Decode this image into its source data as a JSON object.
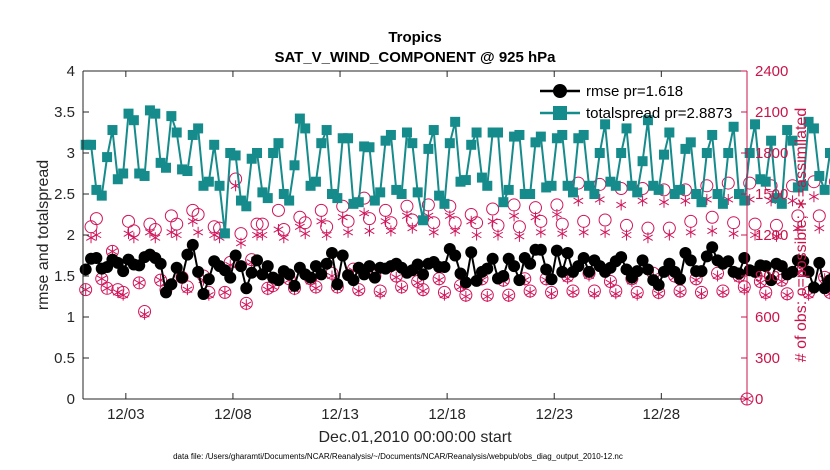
{
  "chart_data": {
    "type": "line",
    "title": "Tropics",
    "subtitle": "SAT_V_WIND_COMPONENT @ 925 hPa",
    "xlabel": "Dec.01,2010 00:00:00 start",
    "ylabel_left": "rmse and totalspread",
    "ylabel_right": "# of obs: o=possible; ∗=assimilated",
    "x_ticks": [
      {
        "day": 3,
        "label": "12/03"
      },
      {
        "day": 8,
        "label": "12/08"
      },
      {
        "day": 13,
        "label": "12/13"
      },
      {
        "day": 18,
        "label": "12/18"
      },
      {
        "day": 23,
        "label": "12/23"
      },
      {
        "day": 28,
        "label": "12/28"
      }
    ],
    "xlim": [
      1,
      32
    ],
    "ylim_left": [
      0,
      4
    ],
    "yticks_left": [
      "0",
      "0.5",
      "1",
      "1.5",
      "2",
      "2.5",
      "3",
      "3.5",
      "4"
    ],
    "ylim_right": [
      0,
      2400
    ],
    "yticks_right": [
      "0",
      "300",
      "600",
      "900",
      "1200",
      "1500",
      "1800",
      "2100",
      "2400"
    ],
    "samples_per_day": 4,
    "series": [
      {
        "name": "rmse",
        "legend": "rmse pr=1.618",
        "color": "#000000",
        "marker": "circle",
        "axis": "left",
        "values": [
          1.58,
          1.71,
          1.72,
          1.59,
          1.61,
          1.7,
          1.66,
          1.56,
          1.7,
          1.64,
          1.63,
          1.73,
          1.76,
          1.72,
          1.65,
          1.3,
          1.4,
          1.6,
          1.48,
          1.76,
          1.88,
          1.55,
          1.28,
          1.46,
          1.68,
          1.62,
          1.57,
          1.48,
          1.75,
          1.62,
          1.35,
          1.54,
          1.69,
          1.52,
          1.62,
          1.48,
          1.45,
          1.56,
          1.52,
          1.38,
          1.6,
          1.52,
          1.48,
          1.62,
          1.52,
          1.65,
          1.78,
          1.4,
          1.75,
          1.51,
          1.45,
          1.6,
          1.52,
          1.62,
          1.48,
          1.6,
          1.59,
          1.62,
          1.65,
          1.6,
          1.54,
          1.57,
          1.64,
          1.52,
          1.65,
          1.67,
          1.61,
          1.61,
          1.83,
          1.75,
          1.53,
          1.42,
          1.79,
          1.44,
          1.55,
          1.59,
          1.71,
          1.47,
          1.5,
          1.71,
          1.62,
          1.45,
          1.72,
          1.65,
          1.82,
          1.82,
          1.58,
          1.46,
          1.81,
          1.55,
          1.78,
          1.55,
          1.62,
          1.72,
          1.55,
          1.69,
          1.62,
          1.55,
          1.6,
          1.68,
          1.73,
          1.58,
          1.48,
          1.56,
          1.69,
          1.58,
          1.45,
          1.39,
          1.55,
          1.65,
          1.55,
          1.46,
          1.78,
          1.69,
          1.56,
          1.56,
          1.74,
          1.85,
          1.69,
          1.65,
          1.68,
          1.55,
          1.53,
          1.72,
          1.57,
          1.55,
          1.63,
          1.62,
          1.45,
          1.65,
          1.62,
          1.52,
          1.55,
          1.69,
          1.68,
          1.55,
          1.36,
          1.66,
          1.35,
          1.45,
          1.52,
          1.64,
          1.7,
          1.55,
          1.74,
          1.65,
          1.42,
          1.5,
          1.55,
          1.88,
          1.72,
          1.52,
          1.42,
          1.65,
          1.4,
          1.49,
          1.66,
          1.6,
          1.44,
          1.38
        ],
        "pr": "1.618"
      },
      {
        "name": "totalspread",
        "legend": "totalspread pr=2.8873",
        "color": "#168b8b",
        "marker": "square",
        "axis": "left",
        "values": [
          3.1,
          3.1,
          2.55,
          2.48,
          2.95,
          3.28,
          2.68,
          2.75,
          3.48,
          3.4,
          2.75,
          2.72,
          3.52,
          3.48,
          2.88,
          2.82,
          3.45,
          3.25,
          2.8,
          2.78,
          3.22,
          3.3,
          2.6,
          2.65,
          3.1,
          2.6,
          2.02,
          3.0,
          2.97,
          2.42,
          2.35,
          2.93,
          3.0,
          2.52,
          2.45,
          3.0,
          3.12,
          2.5,
          2.42,
          2.85,
          3.42,
          3.3,
          2.6,
          2.65,
          3.12,
          3.28,
          2.5,
          2.45,
          3.18,
          3.18,
          2.38,
          2.4,
          3.08,
          3.07,
          2.42,
          2.52,
          3.15,
          3.22,
          2.55,
          2.5,
          3.25,
          3.12,
          2.52,
          2.18,
          3.05,
          3.28,
          2.48,
          2.38,
          3.12,
          3.38,
          2.65,
          2.67,
          3.1,
          3.25,
          2.7,
          2.6,
          3.25,
          3.25,
          2.4,
          2.55,
          3.2,
          3.22,
          2.5,
          2.5,
          3.13,
          3.2,
          2.58,
          2.6,
          3.18,
          3.22,
          2.6,
          2.52,
          3.18,
          3.22,
          2.6,
          2.5,
          3.0,
          3.35,
          2.65,
          2.6,
          3.0,
          3.3,
          2.6,
          2.52,
          2.9,
          3.4,
          2.6,
          2.55,
          2.98,
          3.25,
          2.5,
          2.55,
          3.05,
          3.13,
          2.5,
          2.4,
          3.0,
          3.22,
          2.5,
          2.38,
          3.0,
          3.32,
          2.5,
          2.42,
          3.0,
          3.35,
          2.68,
          2.65,
          3.15,
          2.45,
          2.38,
          3.28,
          3.15,
          2.58,
          2.6,
          3.38,
          3.3,
          2.72,
          2.55,
          3.0,
          3.42,
          2.95,
          2.5,
          3.25,
          3.1,
          2.92,
          2.7,
          3.38
        ]
      },
      {
        "name": "possible",
        "legend": "",
        "color": "#d0145a",
        "marker": "open-circle",
        "axis": "right",
        "values": [
          800,
          1260,
          1320,
          880,
          810,
          1080,
          800,
          780,
          1300,
          1230,
          850,
          640,
          1280,
          1240,
          870,
          800,
          1340,
          1280,
          890,
          820,
          1380,
          1350,
          900,
          780,
          1260,
          1250,
          780,
          1000,
          1610,
          1210,
          700,
          1020,
          1280,
          1280,
          810,
          830,
          1380,
          1240,
          880,
          810,
          1330,
          1290,
          880,
          820,
          1380,
          1260,
          920,
          820,
          1410,
          1300,
          950,
          800,
          1470,
          1320,
          900,
          790,
          1380,
          1290,
          900,
          820,
          1410,
          1310,
          860,
          800,
          1420,
          1290,
          880,
          780,
          1410,
          1290,
          830,
          760,
          1350,
          1290,
          880,
          760,
          1390,
          1270,
          870,
          760,
          1420,
          1260,
          880,
          790,
          1400,
          1300,
          880,
          780,
          1420,
          1280,
          900,
          790,
          1580,
          1300,
          920,
          790,
          1570,
          1310,
          860,
          790,
          1540,
          1270,
          880,
          780,
          1540,
          1250,
          920,
          780,
          1530,
          1250,
          900,
          790,
          1530,
          1300,
          880,
          780,
          1560,
          1330,
          920,
          790,
          1580,
          1290,
          900,
          820,
          1580,
          1280,
          860,
          780,
          1560,
          1270,
          870,
          770,
          1560,
          1340,
          950,
          780,
          1590,
          1340,
          890,
          780,
          1590,
          1370,
          930,
          810,
          1540,
          1270,
          960,
          800,
          1540,
          1290,
          880,
          780,
          1520,
          1320,
          930,
          800
        ]
      },
      {
        "name": "assimilated",
        "legend": "",
        "color": "#d0145a",
        "marker": "asterisk",
        "axis": "right",
        "values": [
          800,
          1180,
          1200,
          880,
          810,
          1080,
          780,
          760,
          1210,
          1180,
          850,
          620,
          1220,
          1180,
          870,
          780,
          1220,
          1200,
          890,
          800,
          1300,
          1220,
          870,
          760,
          1200,
          1180,
          780,
          980,
          1560,
          1140,
          690,
          1000,
          1200,
          1200,
          800,
          820,
          1240,
          1180,
          870,
          800,
          1260,
          1210,
          860,
          810,
          1300,
          1200,
          900,
          810,
          1330,
          1220,
          940,
          790,
          1360,
          1230,
          890,
          770,
          1300,
          1230,
          890,
          810,
          1340,
          1250,
          850,
          790,
          1340,
          1220,
          870,
          760,
          1340,
          1230,
          820,
          750,
          1300,
          1200,
          870,
          750,
          1300,
          1200,
          860,
          750,
          1340,
          1190,
          870,
          780,
          1330,
          1220,
          870,
          770,
          1350,
          1210,
          880,
          780,
          1450,
          1220,
          900,
          770,
          1460,
          1220,
          850,
          770,
          1420,
          1200,
          860,
          760,
          1450,
          1180,
          900,
          770,
          1440,
          1200,
          890,
          780,
          1450,
          1220,
          870,
          770,
          1460,
          1230,
          900,
          780,
          1460,
          1210,
          880,
          800,
          1460,
          1200,
          850,
          760,
          1450,
          1190,
          860,
          760,
          1450,
          1250,
          940,
          760,
          1480,
          1250,
          880,
          770,
          1480,
          1290,
          920,
          800,
          1450,
          1200,
          950,
          790,
          1450,
          1200,
          870,
          770,
          1440,
          1230,
          920,
          790
        ]
      }
    ],
    "legend_position": "top-right"
  },
  "footer": {
    "data_file": "data file: /Users/gharamti/Documents/NCAR/Reanalysis/~/Documents/NCAR/Reanalysis/webpub/obs_diag_output_2010-12.nc"
  },
  "colors": {
    "rmse": "#000000",
    "totalspread": "#168b8b",
    "obs": "#d0145a",
    "right_axis": "#c8144a"
  }
}
